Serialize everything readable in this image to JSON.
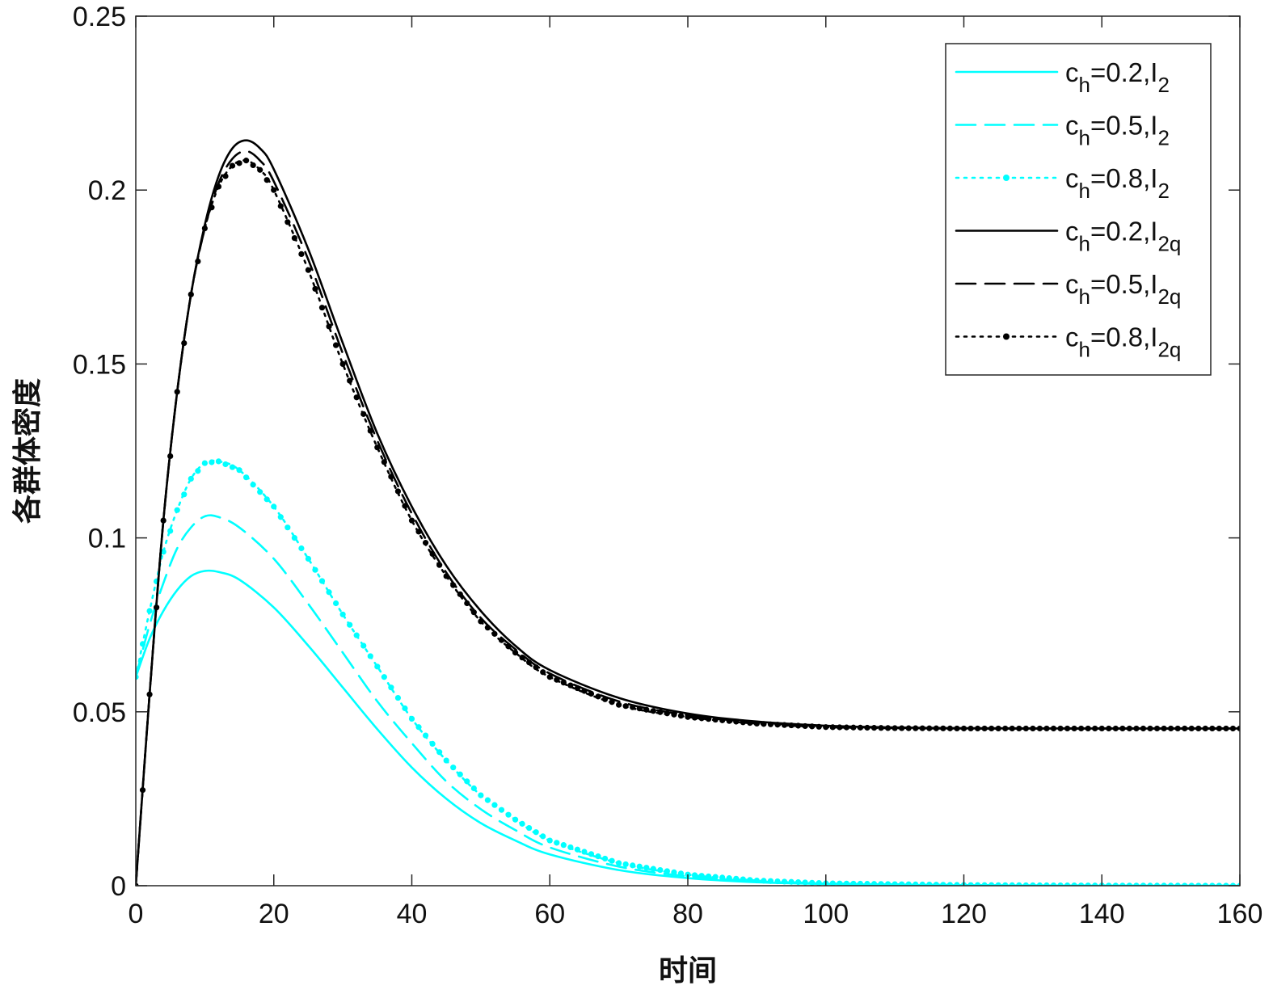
{
  "chart_data": {
    "type": "line",
    "title": "",
    "xlabel": "时间",
    "ylabel": "各群体密度",
    "xlim": [
      0,
      160
    ],
    "ylim": [
      0,
      0.25
    ],
    "xticks": [
      0,
      20,
      40,
      60,
      80,
      100,
      120,
      140,
      160
    ],
    "yticks": [
      0,
      0.05,
      0.1,
      0.15,
      0.2,
      0.25
    ],
    "xtick_labels": [
      "0",
      "20",
      "40",
      "60",
      "80",
      "100",
      "120",
      "140",
      "160"
    ],
    "ytick_labels": [
      "0",
      "0.05",
      "0.1",
      "0.15",
      "0.2",
      "0.25"
    ],
    "grid": false,
    "legend_position": "top-right",
    "series": [
      {
        "name": "ch=0.2,I2",
        "legend": {
          "base": "c",
          "sub1": "h",
          "mid": "=0.2,I",
          "sub2": "2"
        },
        "color": "#00FFFF",
        "style": "solid",
        "marker": "none",
        "x": [
          0,
          2,
          4,
          6,
          8,
          10,
          12,
          15,
          20,
          25,
          30,
          35,
          40,
          45,
          50,
          55,
          60,
          70,
          80,
          90,
          100,
          120,
          140,
          160
        ],
        "y": [
          0.06,
          0.071,
          0.079,
          0.085,
          0.089,
          0.0905,
          0.0902,
          0.088,
          0.08,
          0.069,
          0.057,
          0.045,
          0.034,
          0.025,
          0.018,
          0.013,
          0.009,
          0.0045,
          0.0022,
          0.001,
          0.0005,
          0.0001,
          3e-05,
          0.0
        ]
      },
      {
        "name": "ch=0.5,I2",
        "legend": {
          "base": "c",
          "sub1": "h",
          "mid": "=0.5,I",
          "sub2": "2"
        },
        "color": "#00FFFF",
        "style": "dashed",
        "marker": "none",
        "x": [
          0,
          2,
          4,
          6,
          8,
          10,
          12,
          15,
          20,
          25,
          30,
          35,
          40,
          45,
          50,
          55,
          60,
          70,
          80,
          90,
          100,
          120,
          140,
          160
        ],
        "y": [
          0.06,
          0.075,
          0.087,
          0.097,
          0.103,
          0.1062,
          0.106,
          0.103,
          0.094,
          0.081,
          0.067,
          0.053,
          0.041,
          0.03,
          0.022,
          0.016,
          0.011,
          0.0055,
          0.0027,
          0.0013,
          0.0006,
          0.00015,
          4e-05,
          0.0
        ]
      },
      {
        "name": "ch=0.8,I2",
        "legend": {
          "base": "c",
          "sub1": "h",
          "mid": "=0.8,I",
          "sub2": "2"
        },
        "color": "#00FFFF",
        "style": "dotted",
        "marker": "dot",
        "x": [
          0,
          2,
          4,
          6,
          8,
          10,
          12,
          15,
          20,
          25,
          30,
          35,
          40,
          45,
          50,
          55,
          60,
          70,
          80,
          90,
          100,
          120,
          140,
          160
        ],
        "y": [
          0.06,
          0.079,
          0.096,
          0.108,
          0.117,
          0.1215,
          0.122,
          0.1195,
          0.109,
          0.094,
          0.078,
          0.063,
          0.048,
          0.036,
          0.026,
          0.019,
          0.013,
          0.0065,
          0.0032,
          0.0015,
          0.0007,
          0.0002,
          5e-05,
          0.0
        ]
      },
      {
        "name": "ch=0.2,I2q",
        "legend": {
          "base": "c",
          "sub1": "h",
          "mid": "=0.2,I",
          "sub2": "2q"
        },
        "color": "#000000",
        "style": "solid",
        "marker": "none",
        "x": [
          0,
          2,
          4,
          6,
          8,
          10,
          12,
          14,
          16,
          18,
          20,
          25,
          30,
          35,
          40,
          45,
          50,
          55,
          60,
          70,
          80,
          90,
          100,
          110,
          120,
          140,
          160
        ],
        "y": [
          0.0,
          0.055,
          0.105,
          0.142,
          0.17,
          0.19,
          0.204,
          0.212,
          0.2143,
          0.212,
          0.206,
          0.183,
          0.156,
          0.13,
          0.109,
          0.092,
          0.079,
          0.069,
          0.062,
          0.054,
          0.0495,
          0.0472,
          0.046,
          0.0455,
          0.0453,
          0.0452,
          0.0452
        ]
      },
      {
        "name": "ch=0.5,I2q",
        "legend": {
          "base": "c",
          "sub1": "h",
          "mid": "=0.5,I",
          "sub2": "2q"
        },
        "color": "#000000",
        "style": "dashed",
        "marker": "none",
        "x": [
          0,
          2,
          4,
          6,
          8,
          10,
          12,
          14,
          16,
          18,
          20,
          25,
          30,
          35,
          40,
          45,
          50,
          55,
          60,
          70,
          80,
          90,
          100,
          110,
          120,
          140,
          160
        ],
        "y": [
          0.0,
          0.055,
          0.105,
          0.142,
          0.17,
          0.189,
          0.202,
          0.209,
          0.2112,
          0.2085,
          0.2025,
          0.18,
          0.153,
          0.128,
          0.107,
          0.09,
          0.077,
          0.068,
          0.061,
          0.053,
          0.049,
          0.047,
          0.0458,
          0.0454,
          0.0452,
          0.0452,
          0.0452
        ]
      },
      {
        "name": "ch=0.8,I2q",
        "legend": {
          "base": "c",
          "sub1": "h",
          "mid": "=0.8,I",
          "sub2": "2q"
        },
        "color": "#000000",
        "style": "dotted",
        "marker": "dot",
        "x": [
          0,
          2,
          4,
          6,
          8,
          10,
          12,
          14,
          16,
          18,
          20,
          25,
          30,
          35,
          40,
          45,
          50,
          55,
          60,
          70,
          80,
          90,
          100,
          110,
          120,
          140,
          160
        ],
        "y": [
          0.0,
          0.055,
          0.105,
          0.142,
          0.17,
          0.189,
          0.201,
          0.207,
          0.2085,
          0.2058,
          0.2,
          0.177,
          0.15,
          0.126,
          0.105,
          0.089,
          0.076,
          0.067,
          0.06,
          0.052,
          0.0485,
          0.0466,
          0.0456,
          0.0453,
          0.0452,
          0.0452,
          0.0452
        ]
      }
    ]
  }
}
